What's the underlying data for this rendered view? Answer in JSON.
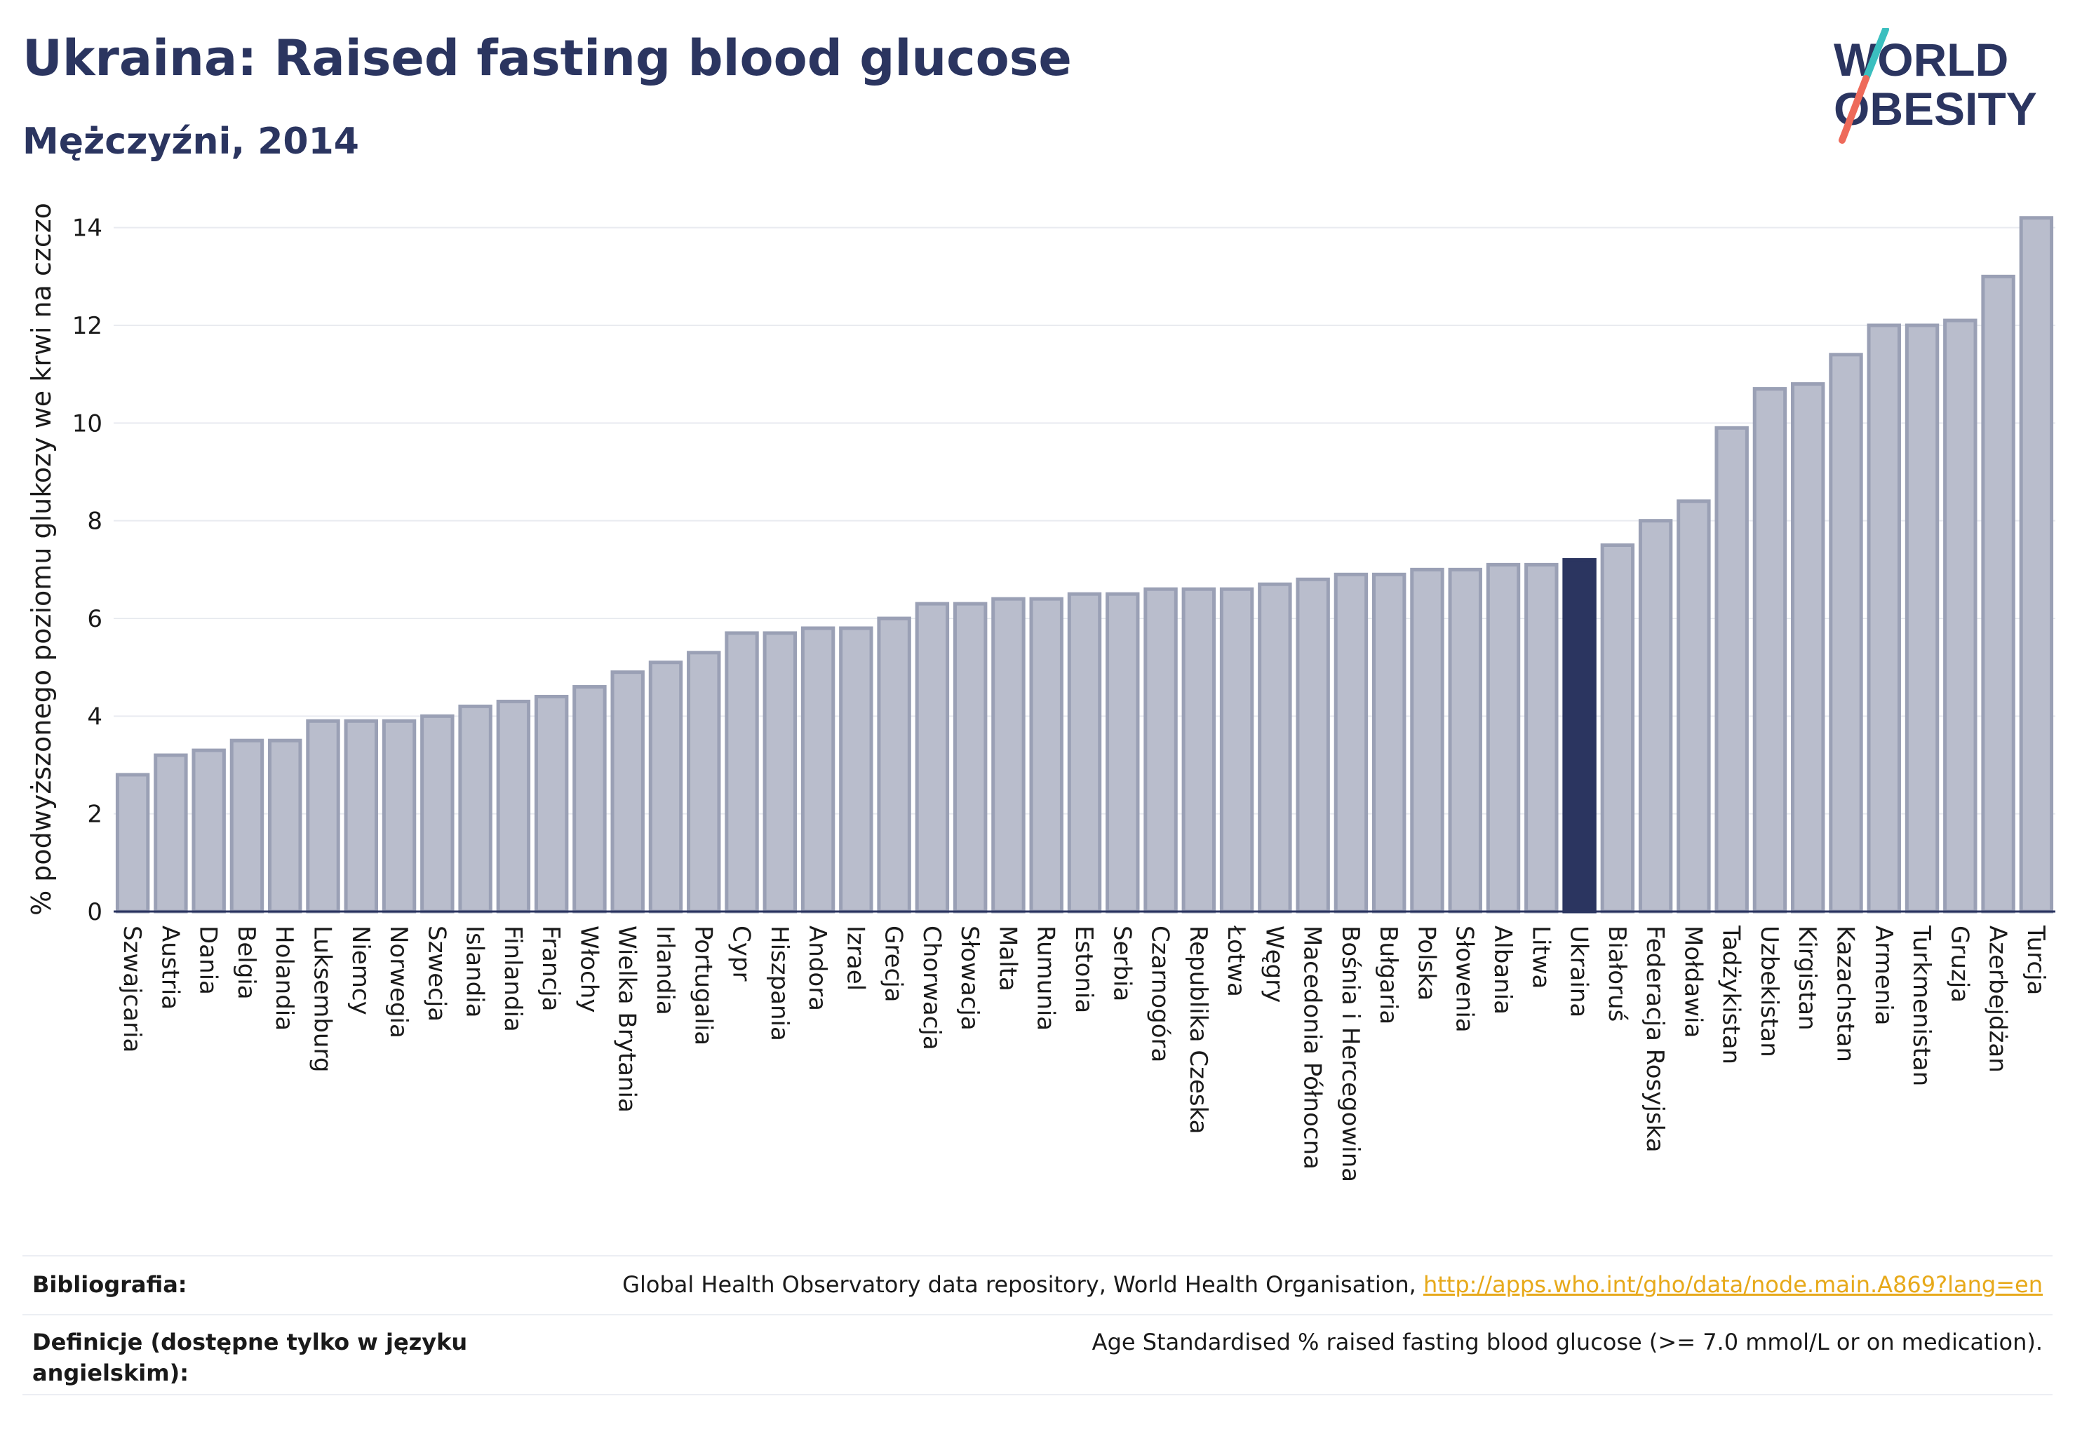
{
  "header": {
    "title": "Ukraina: Raised fasting blood glucose",
    "subtitle": "Mężczyźni, 2014"
  },
  "logo": {
    "line1": "WORLD",
    "line2": "OBESITY"
  },
  "colors": {
    "bar": "#b9bdcc",
    "bar_stroke": "#9aa0b5",
    "highlight": "#2b3560",
    "accent_teal": "#3bbfbf",
    "accent_coral": "#ee6a5a",
    "link": "#e7a91a"
  },
  "chart_data": {
    "type": "bar",
    "title": "Ukraina: Raised fasting blood glucose",
    "subtitle": "Mężczyźni, 2014",
    "ylabel": "% podwyższonego poziomu glukozy we krwi na czczo",
    "xlabel": "",
    "ylim": [
      0,
      15
    ],
    "yticks": [
      0,
      2,
      4,
      6,
      8,
      10,
      12,
      14
    ],
    "grid": true,
    "highlight": "Ukraina",
    "categories": [
      "Szwajcaria",
      "Austria",
      "Dania",
      "Belgia",
      "Holandia",
      "Luksemburg",
      "Niemcy",
      "Norwegia",
      "Szwecja",
      "Islandia",
      "Finlandia",
      "Francja",
      "Włochy",
      "Wielka Brytania",
      "Irlandia",
      "Portugalia",
      "Cypr",
      "Hiszpania",
      "Andora",
      "Izrael",
      "Grecja",
      "Chorwacja",
      "Słowacja",
      "Malta",
      "Rumunia",
      "Estonia",
      "Serbia",
      "Czarnogóra",
      "Republika Czeska",
      "Łotwa",
      "Węgry",
      "Macedonia Północna",
      "Bośnia i Hercegowina",
      "Bułgaria",
      "Polska",
      "Słowenia",
      "Albania",
      "Litwa",
      "Ukraina",
      "Białoruś",
      "Federacja Rosyjska",
      "Mołdawia",
      "Tadżykistan",
      "Uzbekistan",
      "Kirgistan",
      "Kazachstan",
      "Armenia",
      "Turkmenistan",
      "Gruzja",
      "Azerbejdżan",
      "Turcja"
    ],
    "values": [
      2.8,
      3.2,
      3.3,
      3.5,
      3.5,
      3.9,
      3.9,
      3.9,
      4.0,
      4.2,
      4.3,
      4.4,
      4.6,
      4.9,
      5.1,
      5.3,
      5.7,
      5.7,
      5.8,
      5.8,
      6.0,
      6.3,
      6.3,
      6.4,
      6.4,
      6.5,
      6.5,
      6.6,
      6.6,
      6.6,
      6.7,
      6.8,
      6.9,
      6.9,
      7.0,
      7.0,
      7.1,
      7.1,
      7.2,
      7.5,
      8.0,
      8.4,
      9.9,
      10.7,
      10.8,
      11.4,
      12.0,
      12.0,
      12.1,
      13.0,
      14.2
    ]
  },
  "footer": {
    "bibliography_label": "Bibliografia:",
    "bibliography_text": "Global Health Observatory data repository, World Health Organisation, ",
    "bibliography_link": "http://apps.who.int/gho/data/node.main.A869?lang=en",
    "definitions_label": "Definicje (dostępne tylko w języku angielskim):",
    "definitions_text": "Age Standardised % raised fasting blood glucose (>= 7.0 mmol/L or on medication)."
  }
}
